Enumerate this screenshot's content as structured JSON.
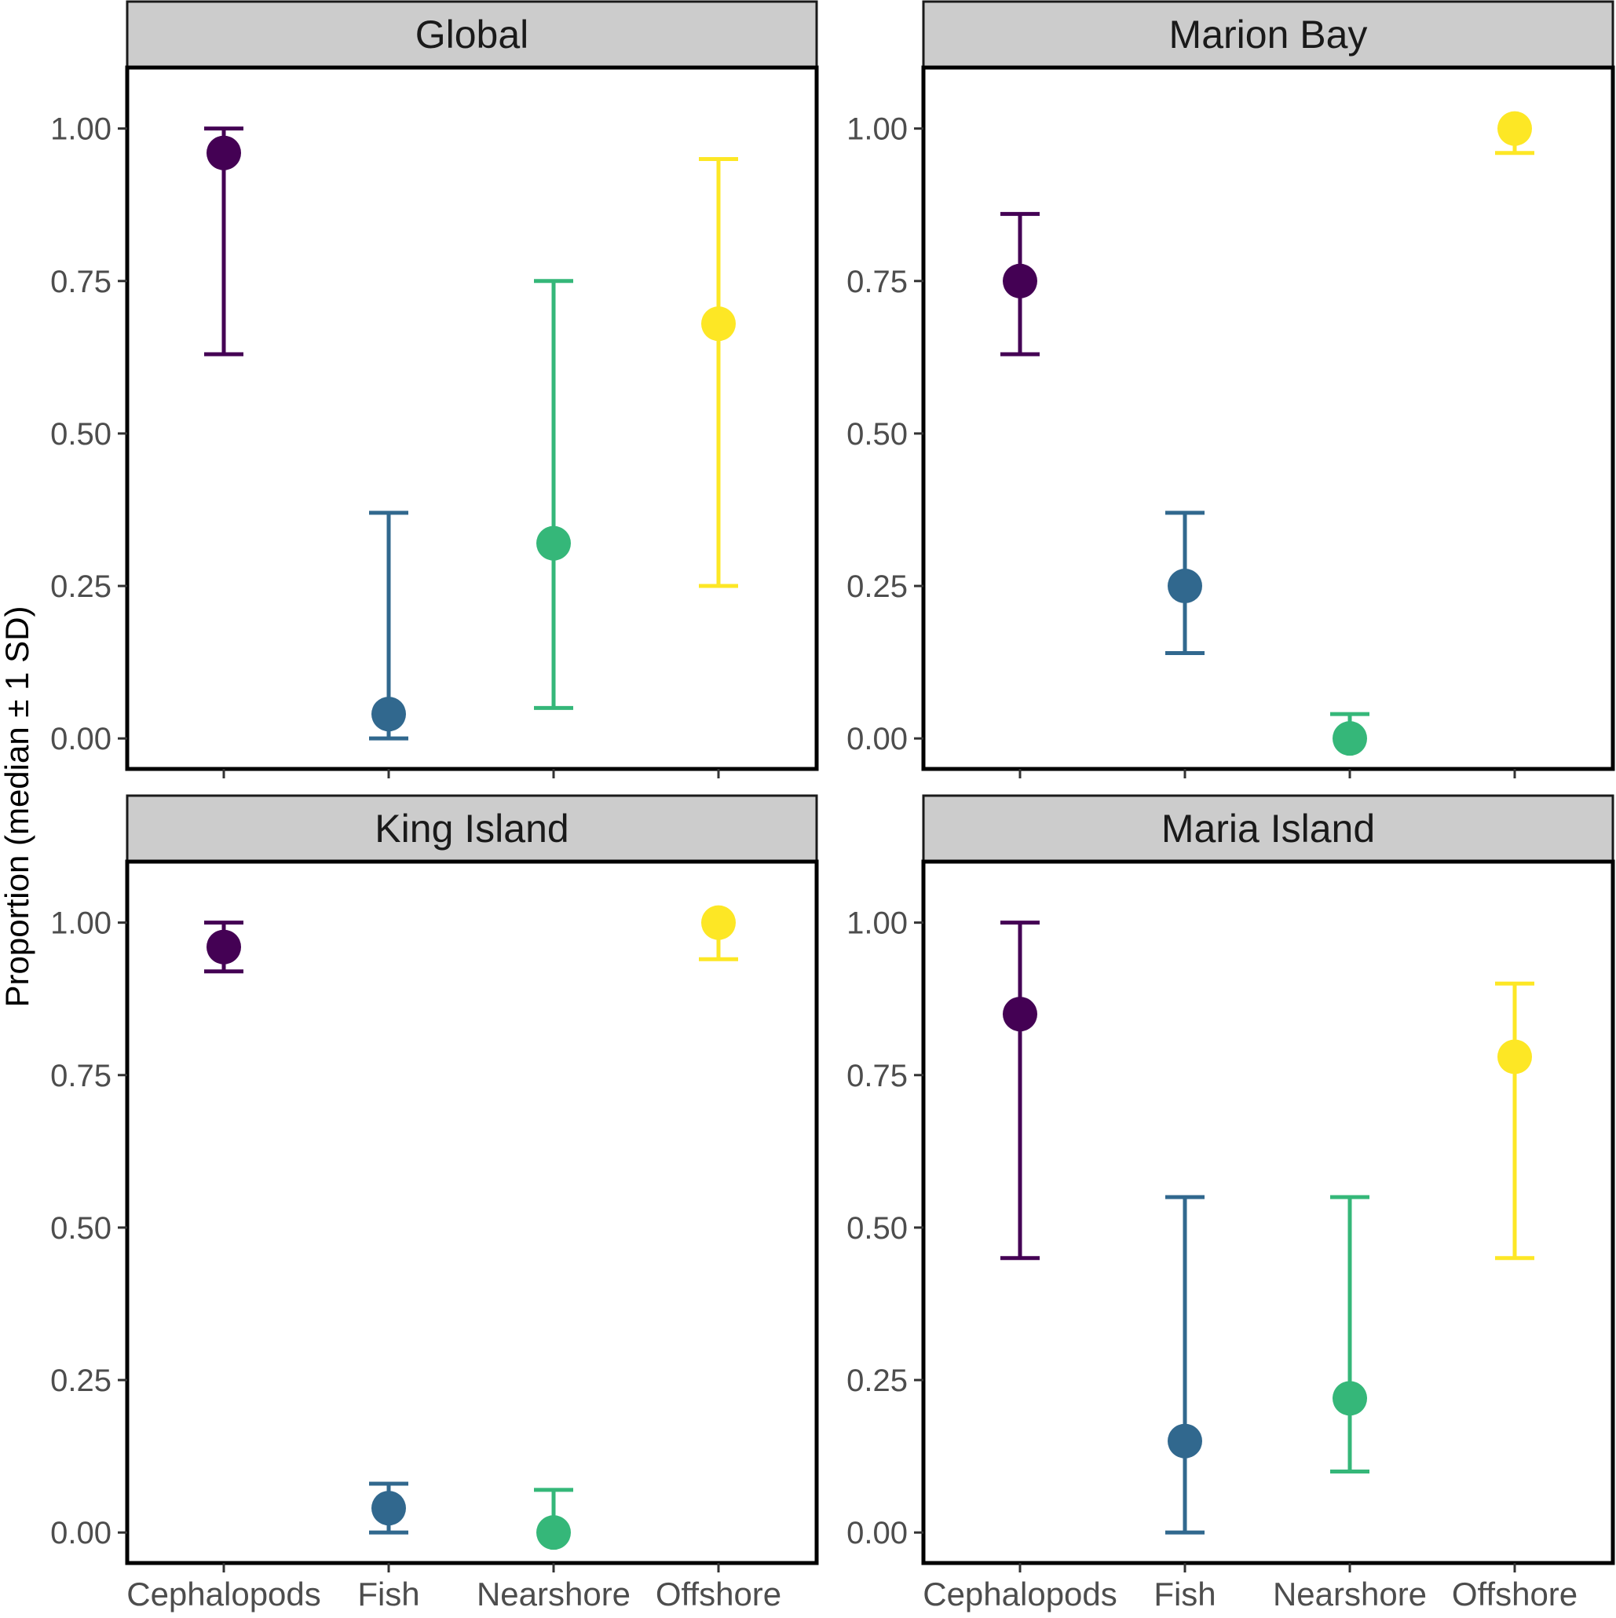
{
  "chart_data": {
    "type": "scatter",
    "ylabel": "Proportion (median ± 1 SD)",
    "categories": [
      "Cephalopods",
      "Fish",
      "Nearshore",
      "Offshore"
    ],
    "colors": {
      "Cephalopods": "#440154",
      "Fish": "#31688e",
      "Nearshore": "#35b779",
      "Offshore": "#fde725"
    },
    "ylim": [
      -0.05,
      1.1
    ],
    "yticks": [
      0,
      0.25,
      0.5,
      0.75,
      1
    ],
    "ytick_labels": [
      "0.00",
      "0.25",
      "0.50",
      "0.75",
      "1.00"
    ],
    "panels": [
      {
        "title": "Global",
        "medians": [
          0.96,
          0.04,
          0.32,
          0.68
        ],
        "lower": [
          0.63,
          0.0,
          0.05,
          0.25
        ],
        "upper": [
          1.0,
          0.37,
          0.75,
          0.95
        ]
      },
      {
        "title": "Marion Bay",
        "medians": [
          0.75,
          0.25,
          0.0,
          1.0
        ],
        "lower": [
          0.63,
          0.14,
          null,
          0.96
        ],
        "upper": [
          0.86,
          0.37,
          0.04,
          null
        ]
      },
      {
        "title": "King Island",
        "medians": [
          0.96,
          0.04,
          0.0,
          1.0
        ],
        "lower": [
          0.92,
          0.0,
          null,
          0.94
        ],
        "upper": [
          1.0,
          0.08,
          0.07,
          null
        ]
      },
      {
        "title": "Maria Island",
        "medians": [
          0.85,
          0.15,
          0.22,
          0.78
        ],
        "lower": [
          0.45,
          0.0,
          0.1,
          0.45
        ],
        "upper": [
          1.0,
          0.55,
          0.55,
          0.9
        ]
      }
    ]
  }
}
